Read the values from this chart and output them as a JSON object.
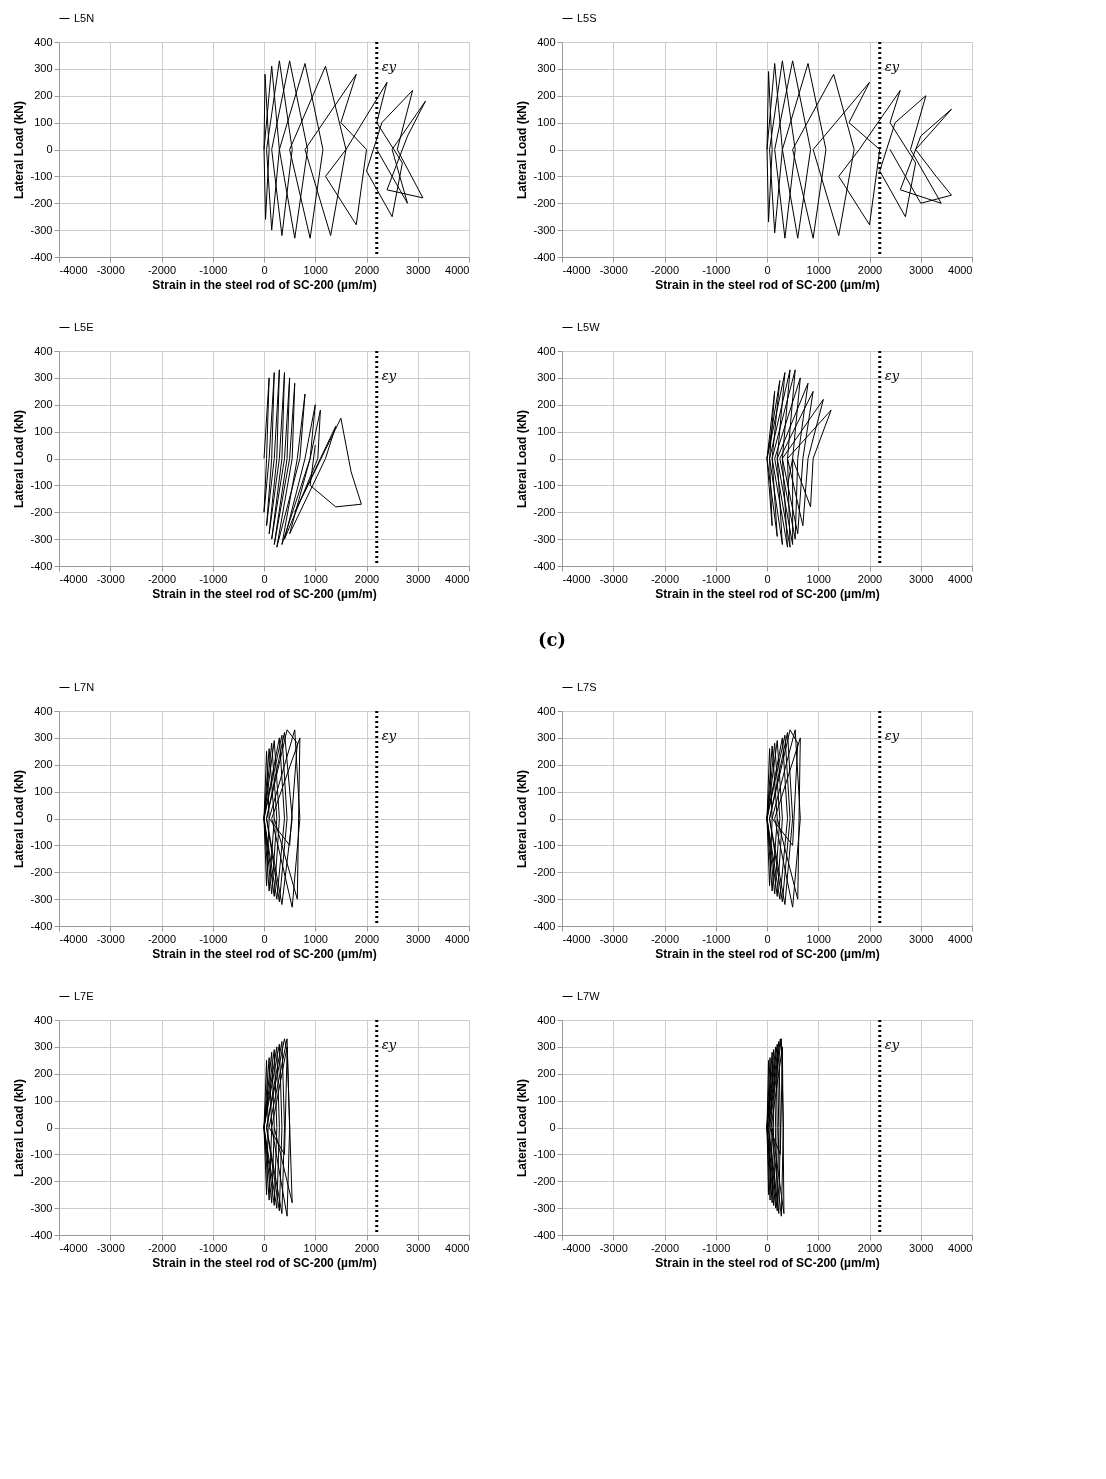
{
  "chart_data": [
    {
      "type": "line",
      "xlabel": "Strain in the steel rod of SC-200 (µm/m)",
      "ylabel": "Lateral Load (kN)",
      "xlim": [
        -4000,
        4000
      ],
      "xticks": [
        -4000,
        -3000,
        -2000,
        -1000,
        0,
        1000,
        2000,
        3000,
        4000
      ],
      "ylim": [
        -400,
        400
      ],
      "yticks": [
        -400,
        -300,
        -200,
        -100,
        0,
        100,
        200,
        300,
        400
      ],
      "grid": true,
      "legend": "top",
      "line_style": "solid",
      "ref_lines": [
        {
          "axis": "x",
          "value": 2200,
          "label": "εy",
          "color": "#000000",
          "line_style": "dotted"
        }
      ],
      "series": [
        {
          "name": "L5N",
          "color": "#000000",
          "x": [
            0,
            20,
            100,
            30,
            0,
            150,
            300,
            150,
            50,
            300,
            550,
            350,
            150,
            500,
            850,
            600,
            300,
            800,
            1150,
            900,
            500,
            1200,
            1600,
            1300,
            800,
            1800,
            1500,
            2000,
            1800,
            1200,
            1600,
            2400,
            2200,
            2700,
            2500,
            2000,
            2300,
            2900,
            2600,
            3100,
            2400,
            2800,
            3150,
            2500,
            2800,
            2200
          ],
          "values": [
            0,
            280,
            0,
            -260,
            0,
            310,
            0,
            -300,
            0,
            330,
            0,
            -320,
            0,
            330,
            0,
            -330,
            0,
            320,
            0,
            -330,
            0,
            310,
            0,
            -320,
            0,
            280,
            100,
            0,
            -280,
            -100,
            0,
            250,
            100,
            -50,
            -250,
            -80,
            100,
            220,
            0,
            -180,
            -150,
            50,
            180,
            0,
            -200,
            0
          ]
        }
      ]
    },
    {
      "type": "line",
      "xlabel": "Strain in the steel rod of SC-200 (µm/m)",
      "ylabel": "Lateral Load (kN)",
      "xlim": [
        -4000,
        4000
      ],
      "xticks": [
        -4000,
        -3000,
        -2000,
        -1000,
        0,
        1000,
        2000,
        3000,
        4000
      ],
      "ylim": [
        -400,
        400
      ],
      "yticks": [
        -400,
        -300,
        -200,
        -100,
        0,
        100,
        200,
        300,
        400
      ],
      "grid": true,
      "legend": "top",
      "line_style": "solid",
      "ref_lines": [
        {
          "axis": "x",
          "value": 2200,
          "label": "εy",
          "color": "#000000",
          "line_style": "dotted"
        }
      ],
      "series": [
        {
          "name": "L5S",
          "color": "#000000",
          "x": [
            0,
            30,
            100,
            30,
            0,
            150,
            300,
            150,
            50,
            300,
            550,
            350,
            150,
            500,
            850,
            600,
            300,
            800,
            1150,
            900,
            500,
            1300,
            1700,
            1400,
            900,
            2000,
            1600,
            2200,
            2000,
            1400,
            1800,
            2600,
            2400,
            2900,
            2700,
            2200,
            2500,
            3100,
            2800,
            3400,
            2600,
            3000,
            3600,
            2900,
            3300,
            3600,
            3000,
            2400
          ],
          "values": [
            0,
            290,
            0,
            -270,
            0,
            320,
            0,
            -310,
            0,
            330,
            0,
            -330,
            0,
            330,
            0,
            -330,
            0,
            320,
            0,
            -330,
            0,
            280,
            0,
            -320,
            0,
            250,
            100,
            0,
            -280,
            -100,
            0,
            220,
            100,
            -50,
            -250,
            -80,
            100,
            200,
            0,
            -200,
            -150,
            50,
            150,
            0,
            -100,
            -170,
            -200,
            0
          ]
        }
      ]
    },
    {
      "type": "line",
      "xlabel": "Strain in the steel rod of SC-200 (µm/m)",
      "ylabel": "Lateral Load (kN)",
      "xlim": [
        -4000,
        4000
      ],
      "xticks": [
        -4000,
        -3000,
        -2000,
        -1000,
        0,
        1000,
        2000,
        3000,
        4000
      ],
      "ylim": [
        -400,
        400
      ],
      "yticks": [
        -400,
        -300,
        -200,
        -100,
        0,
        100,
        200,
        300,
        400
      ],
      "grid": true,
      "legend": "top",
      "line_style": "solid",
      "ref_lines": [
        {
          "axis": "x",
          "value": 2200,
          "label": "εy",
          "color": "#000000",
          "line_style": "dotted"
        }
      ],
      "series": [
        {
          "name": "L5E",
          "color": "#000000",
          "x": [
            0,
            100,
            50,
            0,
            100,
            200,
            150,
            50,
            200,
            300,
            250,
            100,
            300,
            400,
            350,
            150,
            400,
            500,
            450,
            200,
            500,
            600,
            550,
            250,
            700,
            800,
            650,
            350,
            900,
            1000,
            800,
            400,
            1050,
            1100,
            900,
            500,
            1200,
            1400,
            1100,
            600,
            1500,
            1700,
            1900,
            1400,
            900,
            1000
          ],
          "values": [
            0,
            300,
            0,
            -200,
            0,
            320,
            0,
            -250,
            0,
            330,
            0,
            -280,
            0,
            320,
            0,
            -300,
            0,
            300,
            0,
            -320,
            0,
            280,
            0,
            -330,
            0,
            240,
            0,
            -320,
            0,
            200,
            0,
            -300,
            0,
            180,
            0,
            -280,
            0,
            120,
            0,
            -200,
            150,
            -50,
            -170,
            -180,
            -100,
            50
          ]
        }
      ]
    },
    {
      "type": "line",
      "xlabel": "Strain in the steel rod of SC-200 (µm/m)",
      "ylabel": "Lateral Load (kN)",
      "xlim": [
        -4000,
        4000
      ],
      "xticks": [
        -4000,
        -3000,
        -2000,
        -1000,
        0,
        1000,
        2000,
        3000,
        4000
      ],
      "ylim": [
        -400,
        400
      ],
      "yticks": [
        -400,
        -300,
        -200,
        -100,
        0,
        100,
        200,
        300,
        400
      ],
      "grid": true,
      "legend": "top",
      "line_style": "solid",
      "ref_lines": [
        {
          "axis": "x",
          "value": 2200,
          "label": "εy",
          "color": "#000000",
          "line_style": "dotted"
        }
      ],
      "annotations": [
        "(c)"
      ],
      "series": [
        {
          "name": "L5W",
          "color": "#000000",
          "x": [
            0,
            150,
            50,
            100,
            0,
            250,
            100,
            200,
            0,
            350,
            200,
            300,
            50,
            450,
            300,
            400,
            100,
            550,
            400,
            450,
            150,
            650,
            500,
            500,
            200,
            800,
            600,
            550,
            250,
            900,
            700,
            600,
            300,
            1100,
            800,
            700,
            400,
            1250,
            900,
            850,
            500,
            400
          ],
          "values": [
            0,
            250,
            0,
            -250,
            0,
            290,
            0,
            -290,
            0,
            320,
            0,
            -320,
            0,
            330,
            0,
            -330,
            0,
            330,
            0,
            -330,
            0,
            300,
            0,
            -320,
            0,
            280,
            0,
            -300,
            0,
            250,
            0,
            -280,
            0,
            220,
            0,
            -250,
            0,
            180,
            0,
            -180,
            0,
            -100
          ]
        }
      ]
    },
    {
      "type": "line",
      "xlabel": "Strain in the steel rod of SC-200 (µm/m)",
      "ylabel": "Lateral Load (kN)",
      "xlim": [
        -4000,
        4000
      ],
      "xticks": [
        -4000,
        -3000,
        -2000,
        -1000,
        0,
        1000,
        2000,
        3000,
        4000
      ],
      "ylim": [
        -400,
        400
      ],
      "yticks": [
        -400,
        -300,
        -200,
        -100,
        0,
        100,
        200,
        300,
        400
      ],
      "grid": true,
      "legend": "top",
      "line_style": "solid",
      "ref_lines": [
        {
          "axis": "x",
          "value": 2200,
          "label": "εy",
          "color": "#000000",
          "line_style": "dotted"
        }
      ],
      "series": [
        {
          "name": "L7N",
          "color": "#000000",
          "x": [
            0,
            50,
            100,
            50,
            0,
            100,
            200,
            100,
            0,
            150,
            250,
            150,
            0,
            200,
            300,
            200,
            0,
            300,
            400,
            250,
            0,
            350,
            450,
            300,
            50,
            400,
            550,
            350,
            50,
            450,
            650,
            500,
            100,
            600,
            700,
            550,
            150,
            700,
            650,
            200
          ],
          "values": [
            0,
            250,
            0,
            -250,
            0,
            260,
            0,
            -270,
            0,
            280,
            0,
            -280,
            0,
            290,
            0,
            -290,
            0,
            300,
            0,
            -300,
            0,
            310,
            0,
            -310,
            0,
            320,
            0,
            -320,
            0,
            330,
            280,
            -100,
            0,
            330,
            0,
            -330,
            0,
            300,
            -300,
            0
          ]
        }
      ]
    },
    {
      "type": "line",
      "xlabel": "Strain in the steel rod of SC-200 (µm/m)",
      "ylabel": "Lateral Load (kN)",
      "xlim": [
        -4000,
        4000
      ],
      "xticks": [
        -4000,
        -3000,
        -2000,
        -1000,
        0,
        1000,
        2000,
        3000,
        4000
      ],
      "ylim": [
        -400,
        400
      ],
      "yticks": [
        -400,
        -300,
        -200,
        -100,
        0,
        100,
        200,
        300,
        400
      ],
      "grid": true,
      "legend": "top",
      "line_style": "solid",
      "ref_lines": [
        {
          "axis": "x",
          "value": 2200,
          "label": "εy",
          "color": "#000000",
          "line_style": "dotted"
        }
      ],
      "series": [
        {
          "name": "L7S",
          "color": "#000000",
          "x": [
            0,
            50,
            100,
            50,
            0,
            100,
            200,
            100,
            0,
            150,
            250,
            150,
            0,
            200,
            300,
            200,
            0,
            300,
            400,
            250,
            0,
            350,
            450,
            300,
            50,
            400,
            500,
            350,
            50,
            450,
            600,
            500,
            100,
            550,
            650,
            500,
            150,
            650,
            600,
            200
          ],
          "values": [
            0,
            260,
            0,
            -250,
            0,
            270,
            0,
            -270,
            0,
            280,
            0,
            -280,
            0,
            290,
            0,
            -290,
            0,
            300,
            0,
            -300,
            0,
            310,
            0,
            -310,
            0,
            320,
            0,
            -320,
            0,
            330,
            280,
            -100,
            0,
            330,
            0,
            -330,
            0,
            300,
            -300,
            0
          ]
        }
      ]
    },
    {
      "type": "line",
      "xlabel": "Strain in the steel rod of SC-200 (µm/m)",
      "ylabel": "Lateral Load (kN)",
      "xlim": [
        -4000,
        4000
      ],
      "xticks": [
        -4000,
        -3000,
        -2000,
        -1000,
        0,
        1000,
        2000,
        3000,
        4000
      ],
      "ylim": [
        -400,
        400
      ],
      "yticks": [
        -400,
        -300,
        -200,
        -100,
        0,
        100,
        200,
        300,
        400
      ],
      "grid": true,
      "legend": "top",
      "line_style": "solid",
      "ref_lines": [
        {
          "axis": "x",
          "value": 2200,
          "label": "εy",
          "color": "#000000",
          "line_style": "dotted"
        }
      ],
      "series": [
        {
          "name": "L7E",
          "color": "#000000",
          "x": [
            0,
            50,
            80,
            50,
            0,
            100,
            150,
            100,
            0,
            150,
            200,
            150,
            0,
            200,
            250,
            200,
            0,
            250,
            300,
            250,
            0,
            300,
            350,
            300,
            50,
            350,
            400,
            350,
            50,
            400,
            450,
            400,
            100,
            450,
            500,
            450,
            150,
            450,
            550,
            200
          ],
          "values": [
            0,
            250,
            0,
            -250,
            0,
            260,
            0,
            -270,
            0,
            280,
            0,
            -280,
            0,
            290,
            0,
            -290,
            0,
            300,
            0,
            -300,
            0,
            310,
            0,
            -310,
            0,
            320,
            0,
            -320,
            0,
            330,
            280,
            -100,
            0,
            330,
            0,
            -330,
            0,
            300,
            -280,
            0
          ]
        }
      ]
    },
    {
      "type": "line",
      "xlabel": "Strain in the steel rod of SC-200 (µm/m)",
      "ylabel": "Lateral Load (kN)",
      "xlim": [
        -4000,
        4000
      ],
      "xticks": [
        -4000,
        -3000,
        -2000,
        -1000,
        0,
        1000,
        2000,
        3000,
        4000
      ],
      "ylim": [
        -400,
        400
      ],
      "yticks": [
        -400,
        -300,
        -200,
        -100,
        0,
        100,
        200,
        300,
        400
      ],
      "grid": true,
      "legend": "top",
      "line_style": "solid",
      "ref_lines": [
        {
          "axis": "x",
          "value": 2200,
          "label": "εy",
          "color": "#000000",
          "line_style": "dotted"
        }
      ],
      "series": [
        {
          "name": "L7W",
          "color": "#000000",
          "x": [
            0,
            30,
            60,
            30,
            0,
            60,
            100,
            60,
            0,
            100,
            130,
            100,
            0,
            130,
            170,
            130,
            0,
            170,
            200,
            170,
            0,
            200,
            230,
            200,
            20,
            230,
            260,
            230,
            30,
            260,
            300,
            260,
            50,
            280,
            320,
            280,
            80,
            300,
            330,
            100
          ],
          "values": [
            0,
            250,
            0,
            -250,
            0,
            260,
            0,
            -270,
            0,
            280,
            0,
            -280,
            0,
            290,
            0,
            -290,
            0,
            300,
            0,
            -300,
            0,
            310,
            0,
            -310,
            0,
            320,
            0,
            -320,
            0,
            330,
            280,
            -100,
            0,
            330,
            0,
            -330,
            0,
            300,
            -320,
            0
          ]
        }
      ]
    }
  ]
}
